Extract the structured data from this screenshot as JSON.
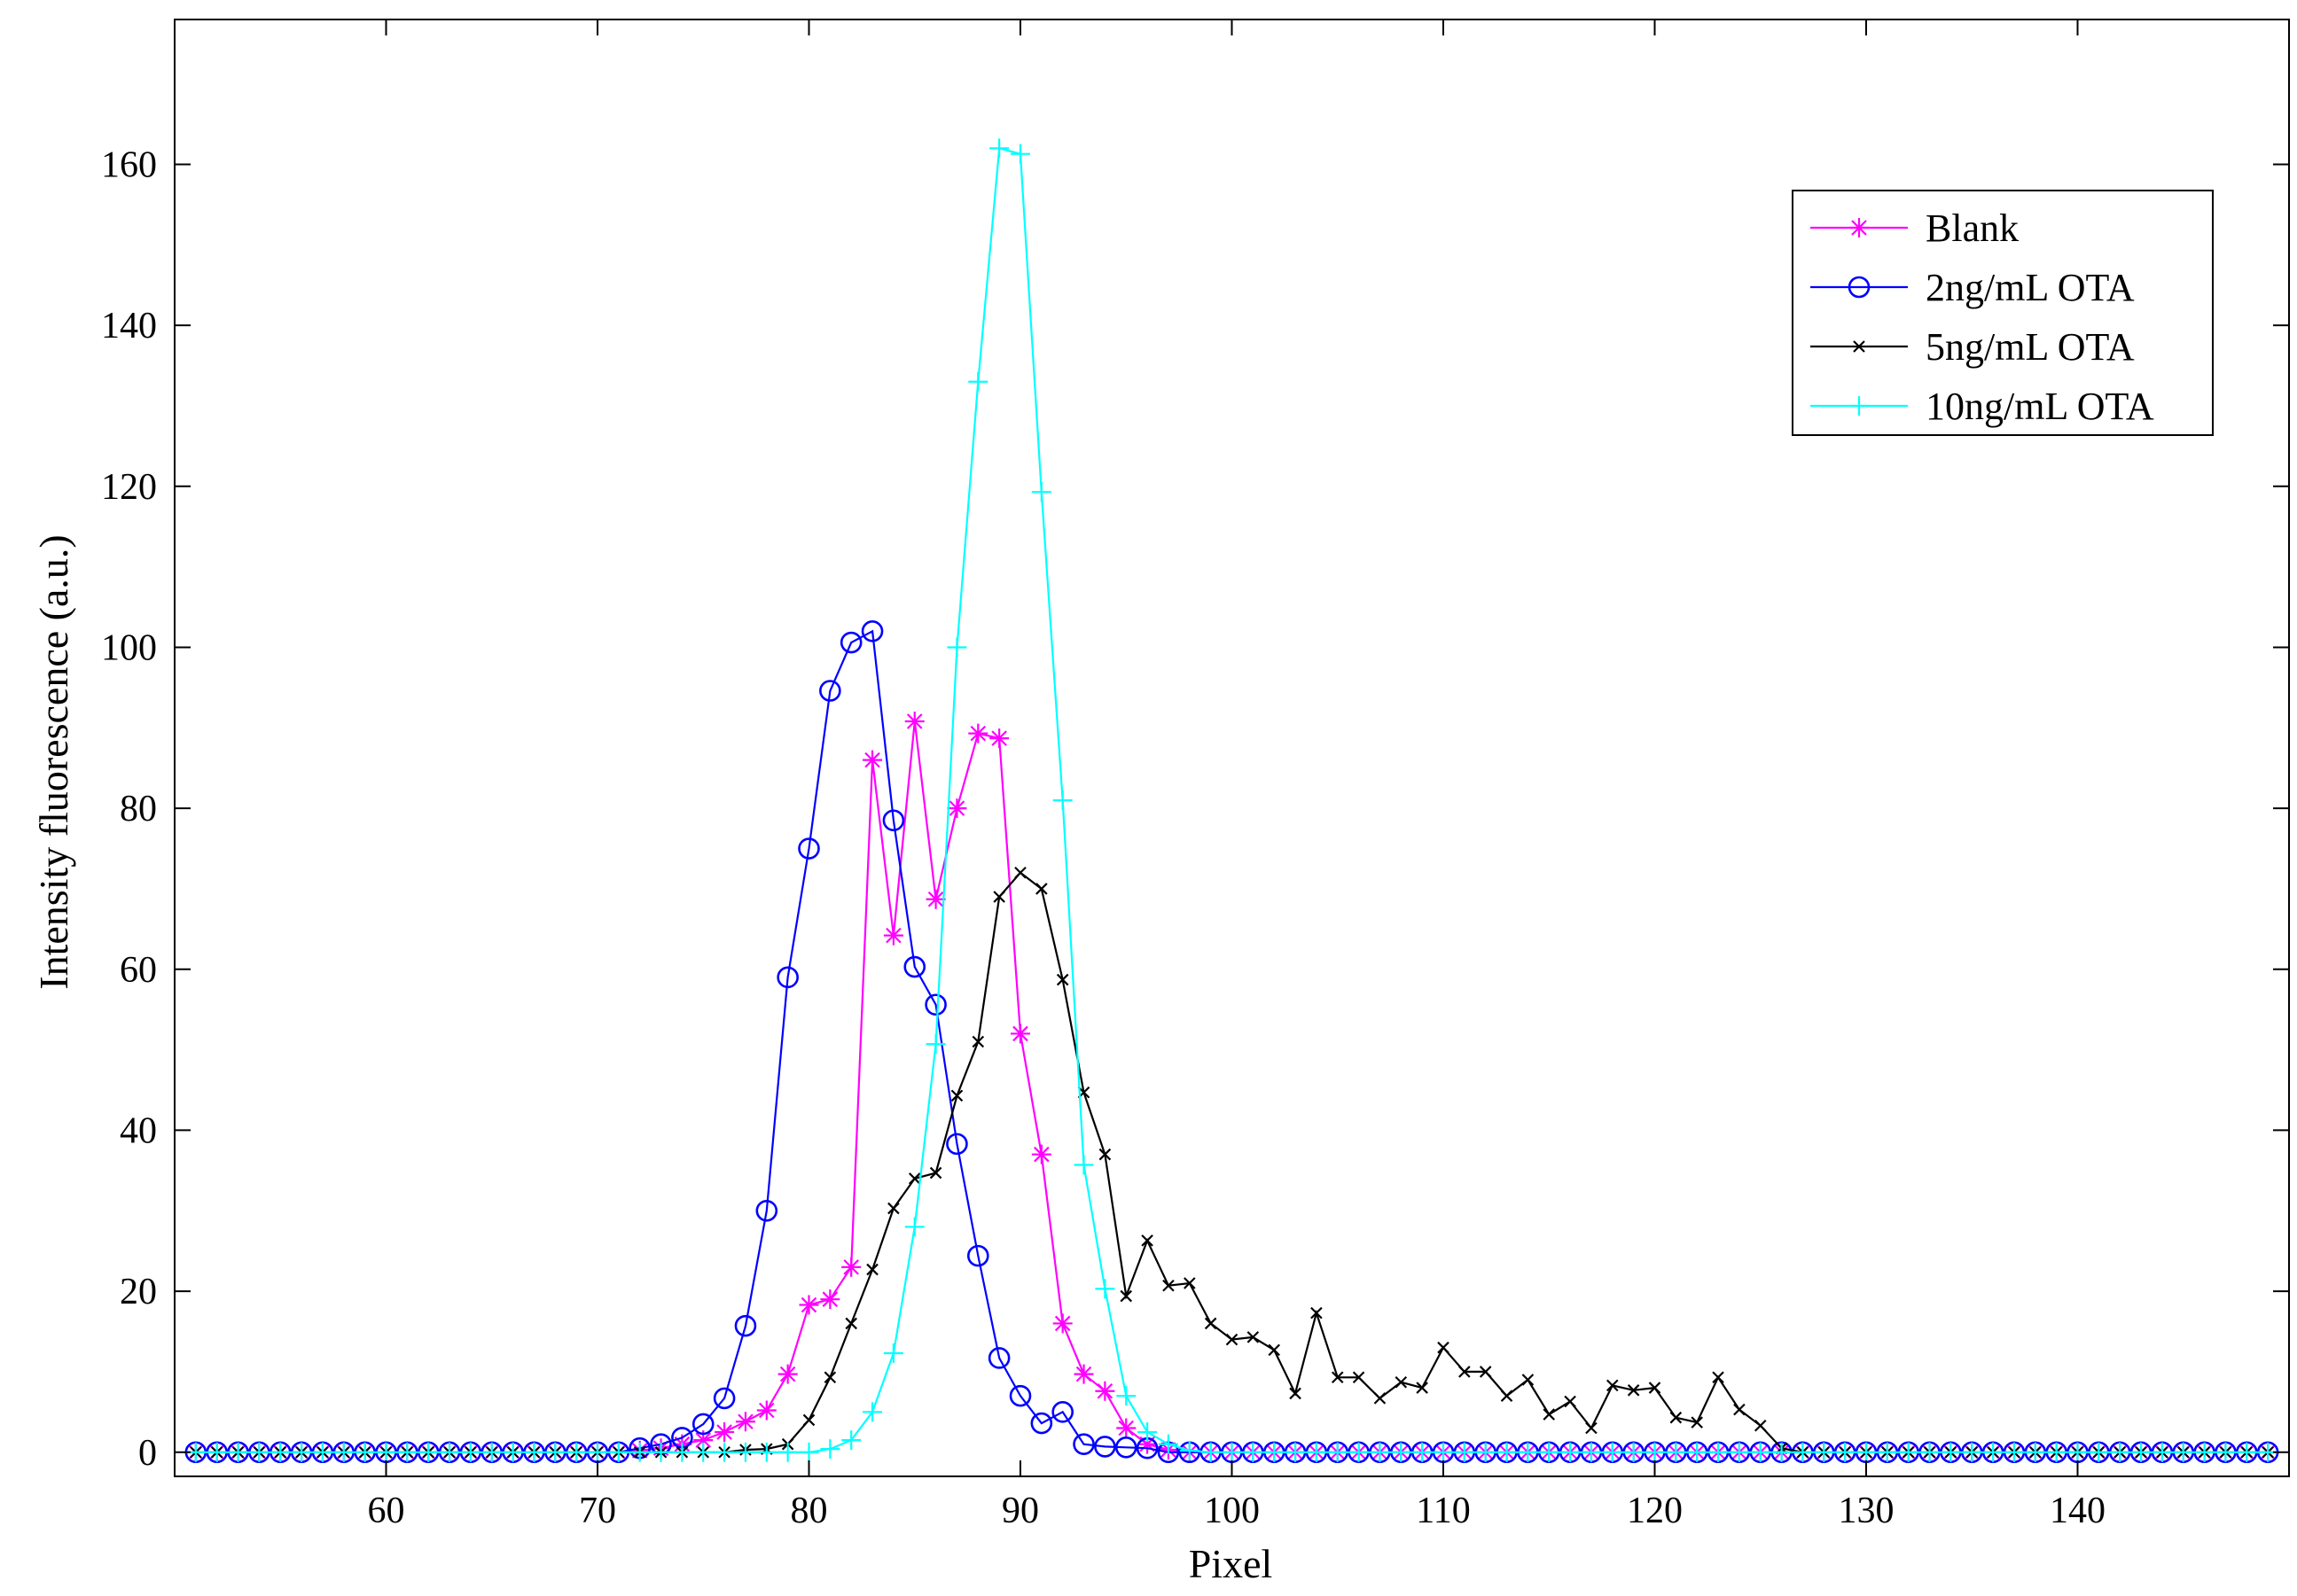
{
  "chart_data": {
    "type": "line",
    "xlabel": "Pixel",
    "ylabel": "Intensity fluorescence (a.u.)",
    "xlim": [
      50,
      150
    ],
    "ylim": [
      -3,
      178
    ],
    "xticks": [
      60,
      70,
      80,
      90,
      100,
      110,
      120,
      130,
      140
    ],
    "yticks": [
      0,
      20,
      40,
      60,
      80,
      100,
      120,
      140,
      160
    ],
    "grid": false,
    "legend_position": "top-right",
    "x": [
      51,
      52,
      53,
      54,
      55,
      56,
      57,
      58,
      59,
      60,
      61,
      62,
      63,
      64,
      65,
      66,
      67,
      68,
      69,
      70,
      71,
      72,
      73,
      74,
      75,
      76,
      77,
      78,
      79,
      80,
      81,
      82,
      83,
      84,
      85,
      86,
      87,
      88,
      89,
      90,
      91,
      92,
      93,
      94,
      95,
      96,
      97,
      98,
      99,
      100,
      101,
      102,
      103,
      104,
      105,
      106,
      107,
      108,
      109,
      110,
      111,
      112,
      113,
      114,
      115,
      116,
      117,
      118,
      119,
      120,
      121,
      122,
      123,
      124,
      125,
      126,
      127,
      128,
      129,
      130,
      131,
      132,
      133,
      134,
      135,
      136,
      137,
      138,
      139,
      140,
      141,
      142,
      143,
      144,
      145,
      146,
      147,
      148,
      149
    ],
    "series": [
      {
        "name": "Blank",
        "color": "#ff00ff",
        "marker": "asterisk",
        "values": [
          0,
          0,
          0,
          0,
          0,
          0,
          0,
          0,
          0,
          0,
          0,
          0,
          0,
          0,
          0,
          0,
          0,
          0,
          0,
          0,
          0,
          0.2,
          0.5,
          1,
          1.5,
          2.5,
          3.8,
          5.2,
          9.7,
          18.3,
          19,
          23,
          86,
          64.2,
          90.8,
          68.7,
          80,
          89.3,
          88.7,
          52,
          37,
          16,
          9.7,
          7.6,
          3,
          1,
          0.3,
          0,
          0,
          0,
          0,
          0,
          0,
          0,
          0,
          0,
          0,
          0,
          0,
          0,
          0,
          0,
          0,
          0,
          0,
          0,
          0,
          0,
          0,
          0,
          0,
          0,
          0,
          0,
          0,
          0,
          0,
          0,
          0,
          0,
          0,
          0,
          0,
          0,
          0,
          0,
          0,
          0,
          0,
          0,
          0,
          0,
          0,
          0,
          0,
          0,
          0,
          0,
          0
        ]
      },
      {
        "name": "2ng/mL OTA",
        "color": "#0000ff",
        "marker": "circle",
        "values": [
          0,
          0,
          0,
          0,
          0,
          0,
          0,
          0,
          0,
          0,
          0,
          0,
          0,
          0,
          0,
          0,
          0,
          0,
          0,
          0,
          0,
          0.5,
          1,
          1.8,
          3.5,
          6.7,
          15.7,
          30,
          59,
          75,
          94.6,
          100.6,
          102,
          78.5,
          60.3,
          55.6,
          38.3,
          24.4,
          11.7,
          7,
          3.6,
          5,
          1,
          0.7,
          0.6,
          0.5,
          0,
          0,
          0,
          0,
          0,
          0,
          0,
          0,
          0,
          0,
          0,
          0,
          0,
          0,
          0,
          0,
          0,
          0,
          0,
          0,
          0,
          0,
          0,
          0,
          0,
          0,
          0,
          0,
          0,
          0,
          0,
          0,
          0,
          0,
          0,
          0,
          0,
          0,
          0,
          0,
          0,
          0,
          0,
          0,
          0,
          0,
          0,
          0,
          0,
          0,
          0,
          0,
          0
        ]
      },
      {
        "name": "5ng/mL OTA",
        "color": "#000000",
        "marker": "x",
        "values": [
          0,
          0,
          0,
          0,
          0,
          0,
          0,
          0,
          0,
          0,
          0,
          0,
          0,
          0,
          0,
          0,
          0,
          0,
          0,
          0,
          0,
          0,
          0,
          0,
          0,
          0,
          0.3,
          0.4,
          1,
          4,
          9.3,
          16,
          22.7,
          30.3,
          34,
          34.7,
          44.3,
          51,
          69,
          72,
          70,
          58.7,
          44.7,
          37,
          19.4,
          26.3,
          20.7,
          21,
          16,
          14,
          14.3,
          12.7,
          7.3,
          17.3,
          9.3,
          9.3,
          6.7,
          8.7,
          8,
          13,
          10,
          10,
          7,
          9,
          4.7,
          6.3,
          3,
          8.3,
          7.7,
          8,
          4.3,
          3.7,
          9.3,
          5.3,
          3.3,
          0.5,
          0,
          0,
          0,
          0,
          0,
          0,
          0,
          0,
          0,
          0,
          0,
          0,
          0,
          0,
          0,
          0,
          0,
          0,
          0,
          0,
          0,
          0,
          0
        ]
      },
      {
        "name": "10ng/mL OTA",
        "color": "#00ffff",
        "marker": "plus",
        "values": [
          0,
          0,
          0,
          0,
          0,
          0,
          0,
          0,
          0,
          0,
          0,
          0,
          0,
          0,
          0,
          0,
          0,
          0,
          0,
          0,
          0,
          0,
          0,
          0,
          0,
          0,
          0,
          0,
          0,
          0,
          0.4,
          1.5,
          5,
          12.3,
          28,
          50.7,
          100,
          133,
          162,
          161.3,
          119.3,
          81,
          35.7,
          20.3,
          7,
          2.5,
          1,
          0.2,
          0,
          0,
          0,
          0,
          0,
          0,
          0,
          0,
          0,
          0,
          0,
          0,
          0,
          0,
          0,
          0,
          0,
          0,
          0,
          0,
          0,
          0,
          0,
          0,
          0,
          0,
          0,
          0,
          0,
          0,
          0,
          0,
          0,
          0,
          0,
          0,
          0,
          0,
          0,
          0,
          0,
          0,
          0,
          0,
          0,
          0,
          0,
          0,
          0,
          0,
          0
        ]
      }
    ]
  }
}
